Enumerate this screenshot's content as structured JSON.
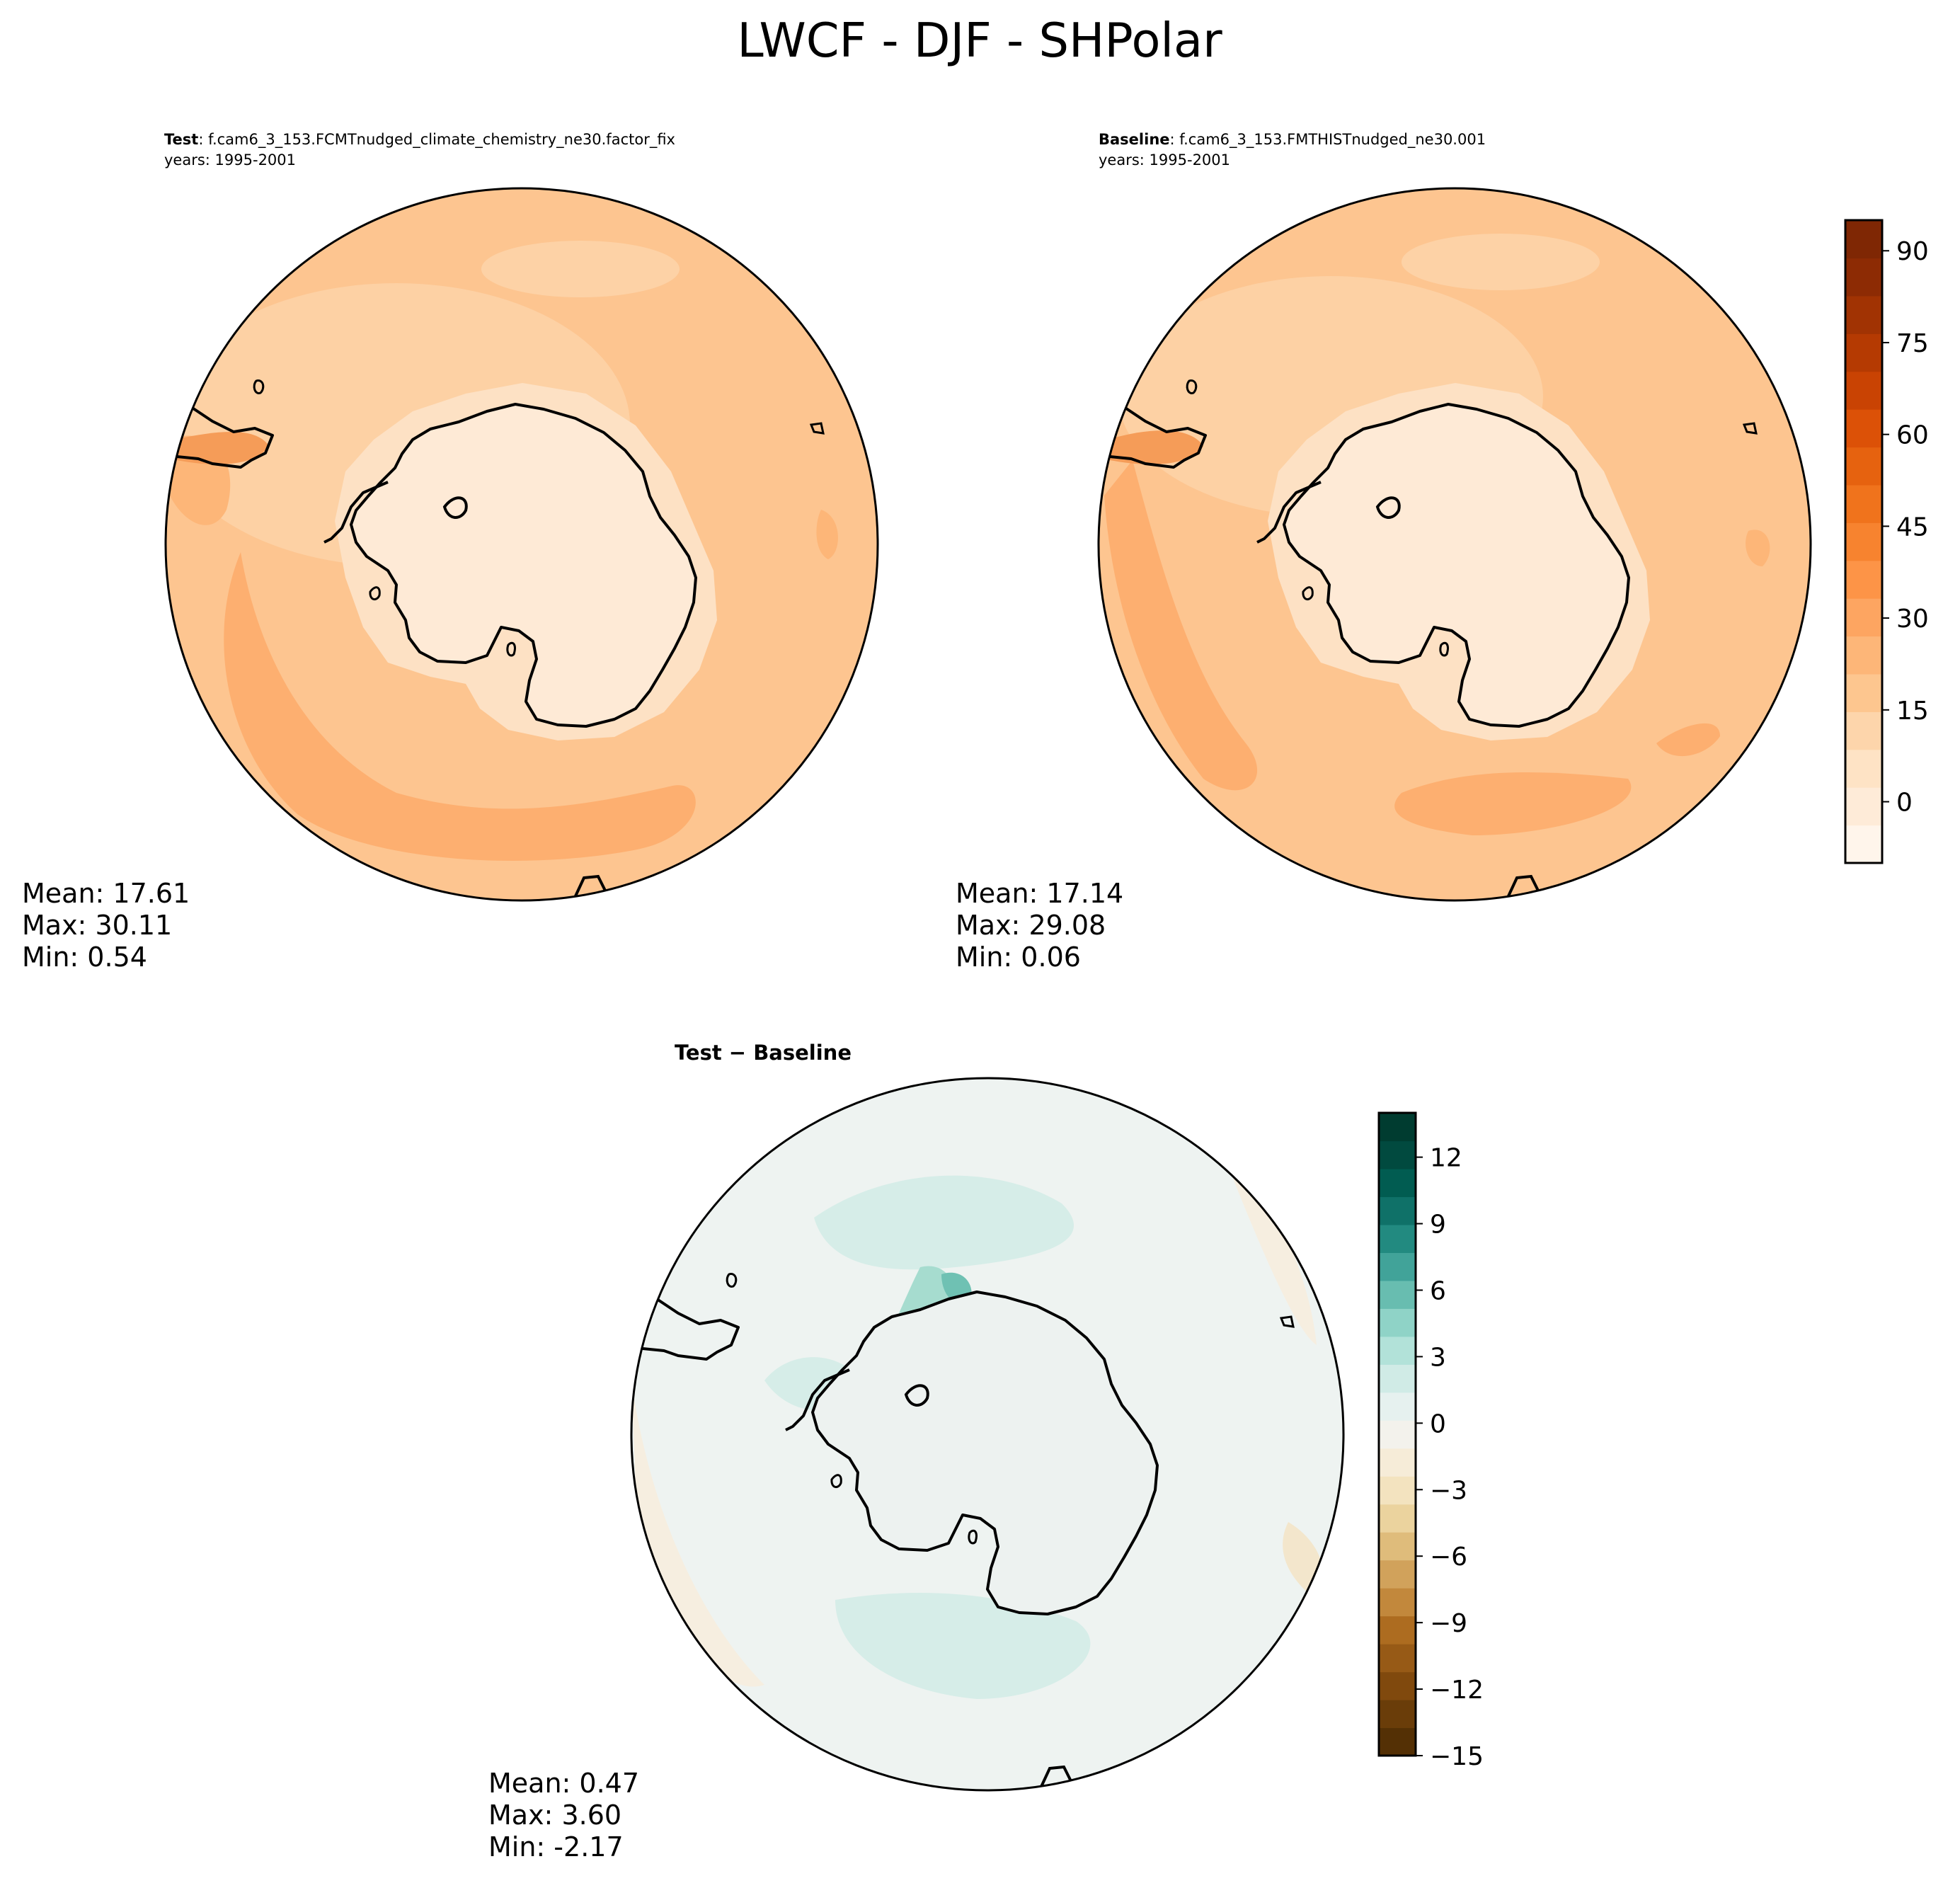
{
  "title": "LWCF - DJF - SHPolar",
  "panels": [
    {
      "id": "test",
      "label_bold": "Test",
      "label_rest": ": f.cam6_3_153.FCMTnudged_climate_chemistry_ne30.factor_fix",
      "years": "years: 1995-2001",
      "stats": {
        "mean": "Mean: 17.61",
        "max": "Max: 30.11",
        "min": "Min:  0.54"
      }
    },
    {
      "id": "baseline",
      "label_bold": "Baseline",
      "label_rest": ": f.cam6_3_153.FMTHISTnudged_ne30.001",
      "years": "years: 1995-2001",
      "stats": {
        "mean": "Mean: 17.14",
        "max": "Max: 29.08",
        "min": "Min:  0.06"
      }
    },
    {
      "id": "diff",
      "label_bold": "Test − Baseline",
      "label_rest": "",
      "years": "",
      "stats": {
        "mean": "Mean:  0.47",
        "max": "Max:  3.60",
        "min": "Min: -2.17"
      }
    }
  ],
  "colorbars": [
    {
      "id": "abs",
      "range": [
        -10,
        95
      ],
      "levels": [
        -10,
        -5,
        0,
        5,
        10,
        15,
        20,
        25,
        30,
        35,
        40,
        45,
        50,
        55,
        60,
        65,
        70,
        75,
        80,
        85,
        90,
        95
      ],
      "ticks": [
        0,
        15,
        30,
        45,
        60,
        75,
        90
      ],
      "tick_labels": [
        "0",
        "15",
        "30",
        "45",
        "60",
        "75",
        "90"
      ],
      "colormap": "oranges",
      "colors": [
        "#fff5eb",
        "#feebd8",
        "#fee3c5",
        "#fdd5ab",
        "#fdc68f",
        "#fdb678",
        "#fda561",
        "#fd9447",
        "#f7832f",
        "#f0731c",
        "#e6620f",
        "#dc5107",
        "#c94303",
        "#b53a02",
        "#a13303",
        "#8d2b04",
        "#7f2704"
      ]
    },
    {
      "id": "diff",
      "range": [
        -15,
        14
      ],
      "ticks": [
        -15,
        -12,
        -9,
        -6,
        -3,
        0,
        3,
        6,
        9,
        12
      ],
      "tick_labels": [
        "−15",
        "−12",
        "−9",
        "−6",
        "−3",
        "0",
        "3",
        "6",
        "9",
        "12"
      ],
      "colormap": "BrBG",
      "colors": [
        "#543005",
        "#6a3d09",
        "#80490d",
        "#975a16",
        "#ad6c20",
        "#c2883c",
        "#d1a25b",
        "#dfbc7b",
        "#ebd39e",
        "#f3e3bf",
        "#f6ecd8",
        "#f3f2ec",
        "#e6f1ef",
        "#d0ebe6",
        "#b2e2d9",
        "#8fd3c7",
        "#68bdb0",
        "#41a399",
        "#228a80",
        "#0f7168",
        "#015c51",
        "#014a3f",
        "#003c30"
      ]
    }
  ]
}
